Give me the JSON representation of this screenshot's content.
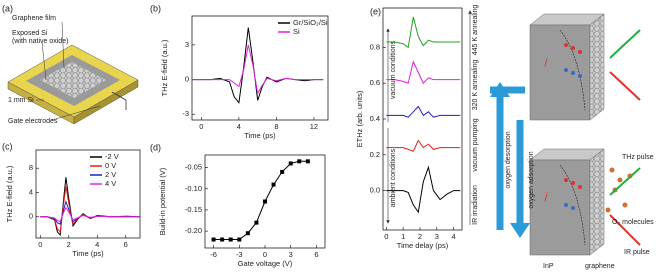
{
  "diagram_a": {
    "panel": "(a)",
    "graphene": "Graphene film",
    "exposed": "Exposed Si",
    "oxide": "(with native oxide)",
    "si": "1 mm Si",
    "gate": "Gate electrodes"
  },
  "diagram_e": {
    "desorption": "oxygen desorption",
    "adsorption": "oxygen adsorption",
    "thz": "THz pulse",
    "o2": "O₂ molecules",
    "ir": "IR pulse",
    "inp": "InP",
    "graphene": "graphene",
    "current": [
      "j",
      "j"
    ]
  },
  "chart_data": [
    {
      "type": "line",
      "panel": "(b)",
      "ylabel": "THz E-field (a.u.)",
      "xlabel": "Time (ps)",
      "x": [
        -1,
        0,
        1,
        2,
        3,
        3.5,
        4,
        4.5,
        5,
        5.5,
        6,
        6.5,
        7,
        8,
        9,
        10,
        11,
        12,
        13
      ],
      "series": [
        {
          "name": "Gr/SiO₂/Si",
          "color": "#000000",
          "values": [
            0,
            0,
            0,
            0.1,
            -0.2,
            -1.5,
            -2.0,
            1.0,
            4.5,
            1.5,
            -1.8,
            -0.6,
            0.2,
            -0.2,
            0.1,
            0,
            -0.1,
            0,
            0
          ]
        },
        {
          "name": "Si",
          "color": "#e020e0",
          "values": [
            0,
            0,
            0,
            0,
            0,
            -0.3,
            -0.6,
            0.8,
            3.0,
            1.2,
            -1.2,
            -0.5,
            0.1,
            -0.1,
            0.1,
            0,
            0,
            0,
            0
          ]
        }
      ],
      "xlim": [
        -1,
        13.5
      ],
      "ylim": [
        -3.5,
        5.5
      ],
      "xticks": [
        0,
        4,
        8,
        12
      ],
      "yticks": [
        -3,
        0,
        3
      ],
      "legend": "upper right"
    },
    {
      "type": "line",
      "panel": "(c)",
      "ylabel": "THz E-field (a.u.)",
      "xlabel": "Time (ps)",
      "x": [
        0,
        0.5,
        1,
        1.2,
        1.4,
        1.6,
        1.8,
        2,
        2.3,
        2.6,
        3,
        3.5,
        4,
        5,
        6,
        7
      ],
      "series": [
        {
          "name": "-2 V",
          "color": "#000000",
          "values": [
            0,
            0,
            -0.5,
            -2.5,
            -3,
            2,
            6.5,
            3,
            -1.5,
            -0.5,
            0.5,
            -0.3,
            0.2,
            0,
            0.1,
            0
          ]
        },
        {
          "name": "0 V",
          "color": "#e02020",
          "values": [
            0,
            0,
            -0.4,
            -2,
            -2.5,
            1.5,
            5,
            2.2,
            -1.2,
            -0.4,
            0.4,
            -0.3,
            0.1,
            0,
            0,
            0
          ]
        },
        {
          "name": "2 V",
          "color": "#2020c0",
          "values": [
            0,
            0,
            -0.3,
            -1,
            -1.2,
            0.8,
            2.5,
            1.2,
            -0.8,
            -0.3,
            0.3,
            -0.2,
            0.1,
            0,
            0,
            0
          ]
        },
        {
          "name": "4 V",
          "color": "#e020e0",
          "values": [
            0,
            0,
            -0.2,
            -0.6,
            -0.8,
            0.5,
            1.5,
            0.8,
            -0.5,
            -0.2,
            0.2,
            -0.1,
            0.1,
            0,
            0,
            0
          ]
        }
      ],
      "xlim": [
        -0.3,
        7
      ],
      "ylim": [
        -3.5,
        11
      ],
      "xticks": [
        0,
        2,
        4,
        6
      ],
      "yticks": [
        0,
        4,
        8
      ],
      "legend": "upper right"
    },
    {
      "type": "line",
      "panel": "(d)",
      "ylabel": "Build-in potential (V)",
      "xlabel": "Gate voltage (V)",
      "markers": "square",
      "x": [
        -6,
        -5,
        -4,
        -3,
        -2,
        -1,
        0,
        1,
        2,
        3,
        4,
        5
      ],
      "series": [
        {
          "color": "#000000",
          "values": [
            -0.22,
            -0.22,
            -0.22,
            -0.22,
            -0.205,
            -0.18,
            -0.13,
            -0.09,
            -0.06,
            -0.04,
            -0.035,
            -0.035
          ]
        }
      ],
      "xlim": [
        -7,
        7
      ],
      "ylim": [
        -0.24,
        -0.02
      ],
      "xticks": [
        -6,
        -3,
        0,
        3,
        6
      ],
      "yticks": [
        {
          "value": -0.2,
          "label": "-0.20"
        },
        -0.15,
        {
          "value": -0.1,
          "label": "-0.10"
        },
        -0.05
      ]
    },
    {
      "type": "line",
      "panel": "(e)",
      "ylabel": "ETHz (arb. units)",
      "xlabel": "Time delay (ps)",
      "x": [
        0,
        0.5,
        1,
        1.3,
        1.6,
        1.9,
        2.2,
        2.5,
        2.8,
        3.2,
        3.6,
        4,
        4.4
      ],
      "series": [
        {
          "color": "#000000",
          "values": [
            0,
            0,
            0,
            -0.01,
            -0.08,
            -0.12,
            0.05,
            0.13,
            0.0,
            -0.05,
            -0.02,
            0,
            0
          ]
        },
        {
          "color": "#e02020",
          "values": [
            0.24,
            0.24,
            0.24,
            0.23,
            0.22,
            0.28,
            0.24,
            0.26,
            0.23,
            0.24,
            0.24,
            0.24,
            0.24
          ]
        },
        {
          "color": "#2020c0",
          "values": [
            0.42,
            0.42,
            0.42,
            0.41,
            0.44,
            0.47,
            0.42,
            0.44,
            0.41,
            0.42,
            0.42,
            0.42,
            0.42
          ]
        },
        {
          "color": "#e020e0",
          "values": [
            0.62,
            0.62,
            0.61,
            0.6,
            0.72,
            0.66,
            0.6,
            0.63,
            0.62,
            0.62,
            0.62,
            0.62,
            0.62
          ]
        },
        {
          "color": "#20a020",
          "values": [
            0.83,
            0.83,
            0.82,
            0.8,
            0.97,
            0.86,
            0.81,
            0.84,
            0.83,
            0.83,
            0.83,
            0.83,
            0.83
          ]
        }
      ],
      "xlim": [
        -0.2,
        4.5
      ],
      "ylim": [
        -0.22,
        1.02
      ],
      "xticks": [
        0,
        1,
        2,
        3,
        4
      ],
      "yticks": [
        {
          "value": 0,
          "label": "0.0"
        },
        0.2,
        0.4,
        0.6,
        0.8
      ],
      "annotations": [
        "vacuum conditions",
        "ambient conditions",
        "IR irradiation",
        "vacuum pumping",
        "320 K annealing",
        "445 K annealing"
      ]
    }
  ]
}
